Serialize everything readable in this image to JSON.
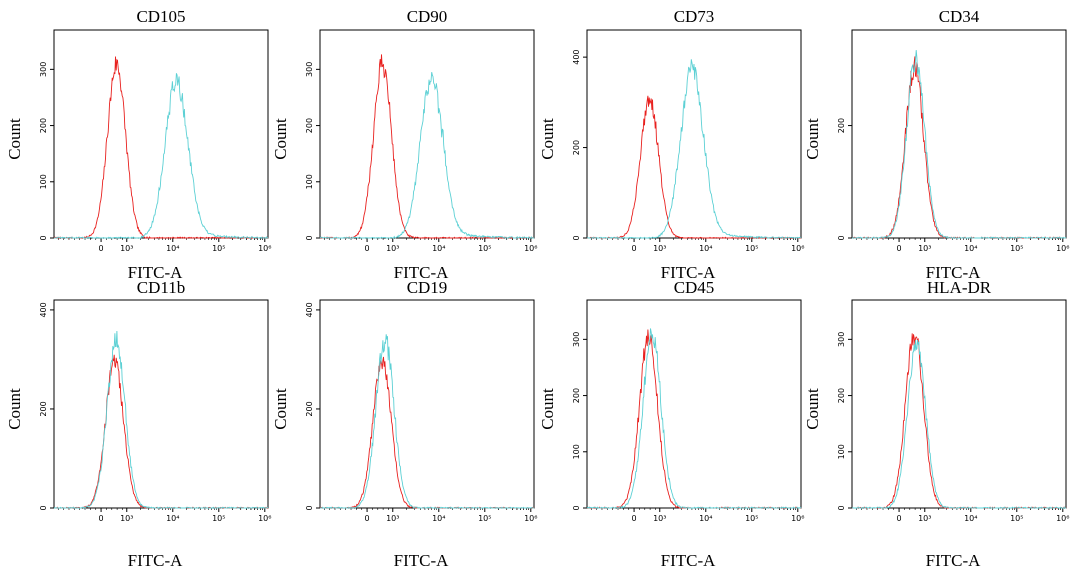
{
  "figure": {
    "x_axis_label": "FITC-A",
    "y_axis_label": "Count",
    "colors": {
      "control": "#e8201e",
      "marker": "#5cd0d4"
    }
  },
  "chart_data": [
    {
      "type": "line",
      "title": "CD105",
      "xlabel": "FITC-A",
      "ylabel": "Count",
      "xscale": "biexponential",
      "x_ticks": [
        "0",
        "10³",
        "10⁴",
        "10⁵",
        "10⁶"
      ],
      "y_ticks": [
        0,
        100,
        200,
        300
      ],
      "ylim": [
        0,
        370
      ],
      "series": [
        {
          "color": "#e8201e",
          "peak_x": 316,
          "peak_count": 310
        },
        {
          "color": "#5cd0d4",
          "peak_x": 12000,
          "peak_count": 280
        }
      ]
    },
    {
      "type": "line",
      "title": "CD90",
      "xlabel": "FITC-A",
      "ylabel": "Count",
      "xscale": "biexponential",
      "x_ticks": [
        "0",
        "10³",
        "10⁴",
        "10⁵",
        "10⁶"
      ],
      "y_ticks": [
        0,
        100,
        200,
        300
      ],
      "ylim": [
        0,
        370
      ],
      "series": [
        {
          "color": "#e8201e",
          "peak_x": 316,
          "peak_count": 310
        },
        {
          "color": "#5cd0d4",
          "peak_x": 7000,
          "peak_count": 285
        }
      ]
    },
    {
      "type": "line",
      "title": "CD73",
      "xlabel": "FITC-A",
      "ylabel": "Count",
      "xscale": "biexponential",
      "x_ticks": [
        "0",
        "10³",
        "10⁴",
        "10⁵",
        "10⁶"
      ],
      "y_ticks": [
        0,
        200,
        400
      ],
      "ylim": [
        0,
        460
      ],
      "series": [
        {
          "color": "#e8201e",
          "peak_x": 316,
          "peak_count": 310
        },
        {
          "color": "#5cd0d4",
          "peak_x": 5000,
          "peak_count": 375
        }
      ]
    },
    {
      "type": "line",
      "title": "CD34",
      "xlabel": "FITC-A",
      "ylabel": "Count",
      "xscale": "biexponential",
      "x_ticks": [
        "0",
        "10³",
        "10⁴",
        "10⁵",
        "10⁶"
      ],
      "y_ticks": [
        0,
        200
      ],
      "ylim": [
        0,
        370
      ],
      "series": [
        {
          "color": "#e8201e",
          "peak_x": 316,
          "peak_count": 305
        },
        {
          "color": "#5cd0d4",
          "peak_x": 360,
          "peak_count": 320
        }
      ]
    },
    {
      "type": "line",
      "title": "CD11b",
      "xlabel": "FITC-A",
      "ylabel": "Count",
      "xscale": "biexponential",
      "x_ticks": [
        "0",
        "10³",
        "10⁴",
        "10⁵",
        "10⁶"
      ],
      "y_ticks": [
        0,
        200,
        400
      ],
      "ylim": [
        0,
        420
      ],
      "series": [
        {
          "color": "#e8201e",
          "peak_x": 250,
          "peak_count": 295
        },
        {
          "color": "#5cd0d4",
          "peak_x": 300,
          "peak_count": 340
        }
      ]
    },
    {
      "type": "line",
      "title": "CD19",
      "xlabel": "FITC-A",
      "ylabel": "Count",
      "xscale": "biexponential",
      "x_ticks": [
        "0",
        "10³",
        "10⁴",
        "10⁵",
        "10⁶"
      ],
      "y_ticks": [
        0,
        200,
        400
      ],
      "ylim": [
        0,
        420
      ],
      "series": [
        {
          "color": "#e8201e",
          "peak_x": 300,
          "peak_count": 300
        },
        {
          "color": "#5cd0d4",
          "peak_x": 420,
          "peak_count": 340
        }
      ]
    },
    {
      "type": "line",
      "title": "CD45",
      "xlabel": "FITC-A",
      "ylabel": "Count",
      "xscale": "biexponential",
      "x_ticks": [
        "0",
        "10³",
        "10⁴",
        "10⁵",
        "10⁶"
      ],
      "y_ticks": [
        0,
        100,
        200,
        300
      ],
      "ylim": [
        0,
        370
      ],
      "series": [
        {
          "color": "#e8201e",
          "peak_x": 280,
          "peak_count": 305
        },
        {
          "color": "#5cd0d4",
          "peak_x": 420,
          "peak_count": 310
        }
      ]
    },
    {
      "type": "line",
      "title": "HLA-DR",
      "xlabel": "FITC-A",
      "ylabel": "Count",
      "xscale": "biexponential",
      "x_ticks": [
        "0",
        "10³",
        "10⁴",
        "10⁵",
        "10⁶"
      ],
      "y_ticks": [
        0,
        100,
        200,
        300
      ],
      "ylim": [
        0,
        370
      ],
      "series": [
        {
          "color": "#e8201e",
          "peak_x": 316,
          "peak_count": 310
        },
        {
          "color": "#5cd0d4",
          "peak_x": 400,
          "peak_count": 295
        }
      ]
    }
  ]
}
